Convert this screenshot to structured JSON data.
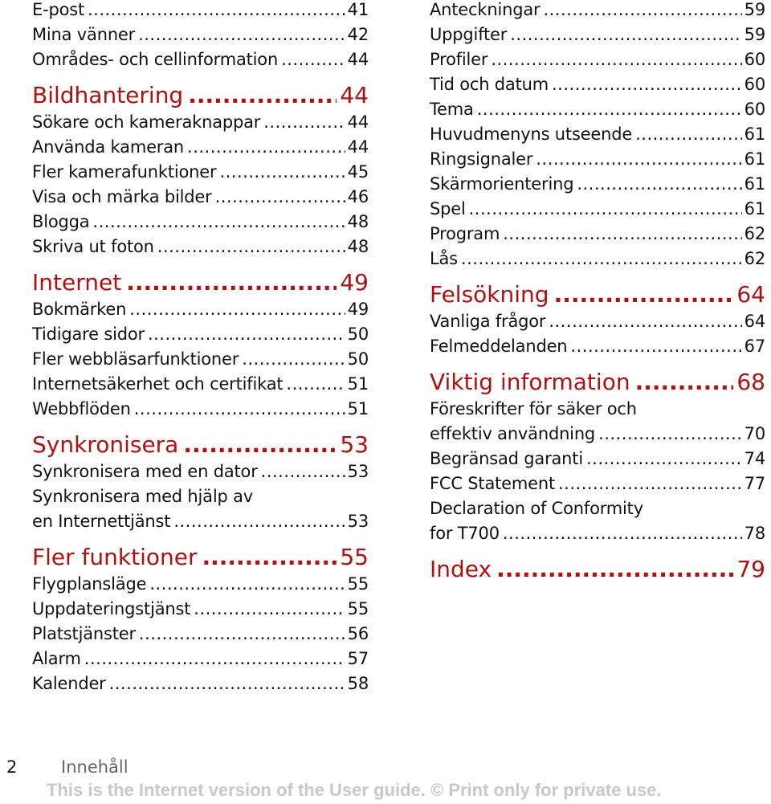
{
  "left_column": [
    {
      "type": "entry",
      "label": "E-post",
      "page": "41"
    },
    {
      "type": "entry",
      "label": "Mina vänner",
      "page": "42"
    },
    {
      "type": "entry",
      "label": "Områdes- och cellinformation",
      "page": "44"
    },
    {
      "type": "heading",
      "label": "Bildhantering",
      "page": "44"
    },
    {
      "type": "entry",
      "label": "Sökare och kameraknappar",
      "page": "44"
    },
    {
      "type": "entry",
      "label": "Använda kameran",
      "page": "44"
    },
    {
      "type": "entry",
      "label": "Fler kamerafunktioner",
      "page": "45"
    },
    {
      "type": "entry",
      "label": "Visa och märka bilder",
      "page": "46"
    },
    {
      "type": "entry",
      "label": "Blogga",
      "page": "48"
    },
    {
      "type": "entry",
      "label": "Skriva ut foton",
      "page": "48"
    },
    {
      "type": "heading",
      "label": "Internet",
      "page": "49"
    },
    {
      "type": "entry",
      "label": "Bokmärken",
      "page": "49"
    },
    {
      "type": "entry",
      "label": "Tidigare sidor",
      "page": "50"
    },
    {
      "type": "entry",
      "label": "Fler webbläsarfunktioner",
      "page": "50"
    },
    {
      "type": "entry",
      "label": "Internetsäkerhet och certifikat",
      "page": "51"
    },
    {
      "type": "entry",
      "label": "Webbflöden",
      "page": "51"
    },
    {
      "type": "heading",
      "label": "Synkronisera",
      "page": "53"
    },
    {
      "type": "entry",
      "label": "Synkronisera med en dator",
      "page": "53"
    },
    {
      "type": "cont",
      "label": "Synkronisera med hjälp av"
    },
    {
      "type": "entry",
      "label": "en Internettjänst",
      "page": "53"
    },
    {
      "type": "heading",
      "label": "Fler funktioner",
      "page": "55"
    },
    {
      "type": "entry",
      "label": "Flygplansläge",
      "page": "55"
    },
    {
      "type": "entry",
      "label": "Uppdateringstjänst",
      "page": "55"
    },
    {
      "type": "entry",
      "label": "Platstjänster",
      "page": "56"
    },
    {
      "type": "entry",
      "label": "Alarm",
      "page": "57"
    },
    {
      "type": "entry",
      "label": "Kalender",
      "page": "58"
    }
  ],
  "right_column": [
    {
      "type": "entry",
      "label": "Anteckningar",
      "page": "59"
    },
    {
      "type": "entry",
      "label": "Uppgifter",
      "page": "59"
    },
    {
      "type": "entry",
      "label": "Profiler",
      "page": "60"
    },
    {
      "type": "entry",
      "label": "Tid och datum",
      "page": "60"
    },
    {
      "type": "entry",
      "label": "Tema",
      "page": "60"
    },
    {
      "type": "entry",
      "label": "Huvudmenyns utseende",
      "page": "61"
    },
    {
      "type": "entry",
      "label": "Ringsignaler",
      "page": "61"
    },
    {
      "type": "entry",
      "label": "Skärmorientering",
      "page": "61"
    },
    {
      "type": "entry",
      "label": "Spel",
      "page": "61"
    },
    {
      "type": "entry",
      "label": "Program",
      "page": "62"
    },
    {
      "type": "entry",
      "label": "Lås",
      "page": "62"
    },
    {
      "type": "heading",
      "label": "Felsökning",
      "page": "64"
    },
    {
      "type": "entry",
      "label": "Vanliga frågor",
      "page": "64"
    },
    {
      "type": "entry",
      "label": "Felmeddelanden",
      "page": "67"
    },
    {
      "type": "heading",
      "label": "Viktig information",
      "page": "68"
    },
    {
      "type": "cont",
      "label": "Föreskrifter för säker och"
    },
    {
      "type": "entry",
      "label": "effektiv användning",
      "page": "70"
    },
    {
      "type": "entry",
      "label": "Begränsad garanti",
      "page": "74"
    },
    {
      "type": "entry",
      "label": "FCC Statement",
      "page": "77"
    },
    {
      "type": "cont",
      "label": "Declaration of Conformity"
    },
    {
      "type": "entry",
      "label": "for T700",
      "page": "78"
    },
    {
      "type": "heading",
      "label": "Index",
      "page": "79"
    }
  ],
  "footer": {
    "page_number": "2",
    "section_label": "Innehåll",
    "note": "This is the Internet version of the User guide. © Print only for private use."
  },
  "colors": {
    "heading": "#b01010",
    "note": "#c8c8c8"
  }
}
